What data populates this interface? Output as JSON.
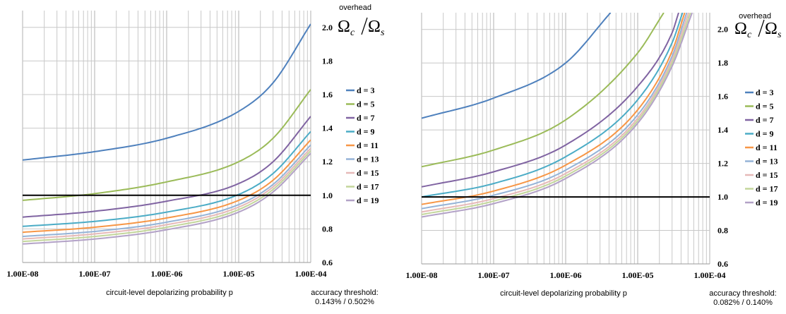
{
  "chart_data": [
    {
      "type": "line",
      "xscale": "log",
      "xlim": [
        1e-08,
        0.0001
      ],
      "ylim": [
        0.6,
        2.1
      ],
      "yticks": [
        0.6,
        0.8,
        1.0,
        1.2,
        1.4,
        1.6,
        1.8,
        2.0
      ],
      "xtick_labels": [
        "1.00E-08",
        "1.00E-07",
        "1.00E-06",
        "1.00E-05",
        "1.00E-04"
      ],
      "ytick_labels": [
        "0.6",
        "0.8",
        "1.0",
        "1.2",
        "1.4",
        "1.6",
        "1.8",
        "2.0"
      ],
      "xlabel": "circuit-level depolarizing probability p",
      "ylabel_top": "overhead",
      "ylabel_symbol": "Ω",
      "ylabel_sub_c": "c",
      "ylabel_sub_s": "s",
      "threshold_label": "accuracy threshold:",
      "threshold_values": "0.143% / 0.502%",
      "reference_line": 1.0,
      "grid": true,
      "legend_position": "right",
      "series": [
        {
          "name": "d = 3",
          "color": "#4f81bd",
          "x": [
            1e-08,
            1e-07,
            1e-06,
            1e-05,
            3e-05,
            0.0001
          ],
          "y": [
            1.21,
            1.26,
            1.34,
            1.5,
            1.67,
            2.02
          ]
        },
        {
          "name": "d = 5",
          "color": "#9bbb59",
          "x": [
            1e-08,
            1e-07,
            1e-06,
            1e-05,
            3e-05,
            0.0001
          ],
          "y": [
            0.97,
            1.01,
            1.08,
            1.2,
            1.34,
            1.63
          ]
        },
        {
          "name": "d = 7",
          "color": "#8064a2",
          "x": [
            1e-08,
            1e-07,
            1e-06,
            1e-05,
            3e-05,
            0.0001
          ],
          "y": [
            0.87,
            0.905,
            0.965,
            1.07,
            1.2,
            1.47
          ]
        },
        {
          "name": "d = 9",
          "color": "#4bacc6",
          "x": [
            1e-08,
            1e-07,
            1e-06,
            1e-05,
            3e-05,
            0.0001
          ],
          "y": [
            0.815,
            0.845,
            0.9,
            1.005,
            1.13,
            1.38
          ]
        },
        {
          "name": "d = 11",
          "color": "#f79646",
          "x": [
            1e-08,
            1e-07,
            1e-06,
            1e-05,
            3e-05,
            0.0001
          ],
          "y": [
            0.78,
            0.81,
            0.865,
            0.97,
            1.09,
            1.33
          ]
        },
        {
          "name": "d = 13",
          "color": "#95b3d7",
          "x": [
            1e-08,
            1e-07,
            1e-06,
            1e-05,
            3e-05,
            0.0001
          ],
          "y": [
            0.755,
            0.785,
            0.84,
            0.945,
            1.065,
            1.3
          ]
        },
        {
          "name": "d = 15",
          "color": "#e6b9b8",
          "x": [
            1e-08,
            1e-07,
            1e-06,
            1e-05,
            3e-05,
            0.0001
          ],
          "y": [
            0.74,
            0.77,
            0.825,
            0.93,
            1.05,
            1.28
          ]
        },
        {
          "name": "d = 17",
          "color": "#c3d69b",
          "x": [
            1e-08,
            1e-07,
            1e-06,
            1e-05,
            3e-05,
            0.0001
          ],
          "y": [
            0.725,
            0.755,
            0.81,
            0.915,
            1.035,
            1.265
          ]
        },
        {
          "name": "d = 19",
          "color": "#b3a2c7",
          "x": [
            1e-08,
            1e-07,
            1e-06,
            1e-05,
            3e-05,
            0.0001
          ],
          "y": [
            0.71,
            0.74,
            0.795,
            0.9,
            1.02,
            1.25
          ]
        }
      ]
    },
    {
      "type": "line",
      "xscale": "log",
      "xlim": [
        1e-08,
        0.0001
      ],
      "ylim": [
        0.6,
        2.1
      ],
      "yticks": [
        0.6,
        0.8,
        1.0,
        1.2,
        1.4,
        1.6,
        1.8,
        2.0
      ],
      "xtick_labels": [
        "1.00E-08",
        "1.00E-07",
        "1.00E-06",
        "1.00E-05",
        "1.00E-04"
      ],
      "ytick_labels": [
        "0.6",
        "0.8",
        "1.0",
        "1.2",
        "1.4",
        "1.6",
        "1.8",
        "2.0"
      ],
      "xlabel": "circuit-level depolarizing probability p",
      "ylabel_top": "overhead",
      "ylabel_symbol": "Ω",
      "ylabel_sub_c": "c",
      "ylabel_sub_s": "s",
      "threshold_label": "accuracy threshold:",
      "threshold_values": "0.082% / 0.140%",
      "reference_line": 1.0,
      "grid": true,
      "legend_position": "right",
      "series": [
        {
          "name": "d = 3",
          "color": "#4f81bd",
          "x": [
            1e-08,
            1e-07,
            1e-06,
            4.2e-06
          ],
          "y": [
            1.47,
            1.59,
            1.8,
            2.1
          ]
        },
        {
          "name": "d = 5",
          "color": "#9bbb59",
          "x": [
            1e-08,
            1e-07,
            1e-06,
            1e-05,
            2.3e-05
          ],
          "y": [
            1.18,
            1.28,
            1.46,
            1.86,
            2.1
          ]
        },
        {
          "name": "d = 7",
          "color": "#8064a2",
          "x": [
            1e-08,
            1e-07,
            1e-06,
            1e-05,
            3e-05,
            3.7e-05
          ],
          "y": [
            1.06,
            1.15,
            1.31,
            1.66,
            1.98,
            2.1
          ]
        },
        {
          "name": "d = 9",
          "color": "#4bacc6",
          "x": [
            1e-08,
            1e-07,
            1e-06,
            1e-05,
            3e-05,
            4.2e-05
          ],
          "y": [
            1.0,
            1.08,
            1.24,
            1.58,
            1.92,
            2.1
          ]
        },
        {
          "name": "d = 11",
          "color": "#f79646",
          "x": [
            1e-08,
            1e-07,
            1e-06,
            1e-05,
            3e-05,
            4.5e-05
          ],
          "y": [
            0.955,
            1.035,
            1.19,
            1.52,
            1.87,
            2.1
          ]
        },
        {
          "name": "d = 13",
          "color": "#95b3d7",
          "x": [
            1e-08,
            1e-07,
            1e-06,
            1e-05,
            3e-05,
            4.8e-05
          ],
          "y": [
            0.93,
            1.01,
            1.16,
            1.49,
            1.84,
            2.1
          ]
        },
        {
          "name": "d = 15",
          "color": "#e6b9b8",
          "x": [
            1e-08,
            1e-07,
            1e-06,
            1e-05,
            3e-05,
            5.1e-05
          ],
          "y": [
            0.91,
            0.99,
            1.14,
            1.47,
            1.82,
            2.1
          ]
        },
        {
          "name": "d = 17",
          "color": "#c3d69b",
          "x": [
            1e-08,
            1e-07,
            1e-06,
            1e-05,
            3e-05,
            5.4e-05
          ],
          "y": [
            0.895,
            0.975,
            1.125,
            1.455,
            1.8,
            2.1
          ]
        },
        {
          "name": "d = 19",
          "color": "#b3a2c7",
          "x": [
            1e-08,
            1e-07,
            1e-06,
            1e-05,
            3e-05,
            5.7e-05
          ],
          "y": [
            0.88,
            0.96,
            1.11,
            1.44,
            1.78,
            2.1
          ]
        }
      ]
    }
  ]
}
